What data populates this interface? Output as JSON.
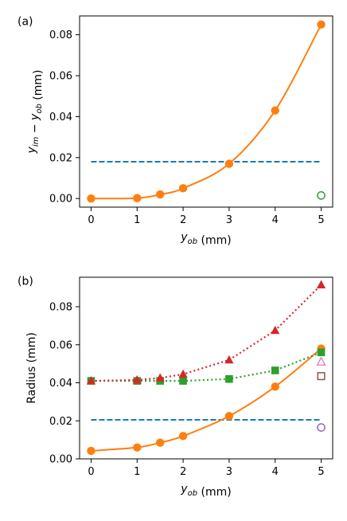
{
  "chart_data": [
    {
      "panel_label": "(a)",
      "type": "line",
      "xlabel": "y_ob (mm)",
      "ylabel": "y_im − y_ob (mm)",
      "xlim": [
        -0.25,
        5.25
      ],
      "ylim": [
        -0.0042,
        0.0892
      ],
      "xticks": [
        0,
        1,
        2,
        3,
        4,
        5
      ],
      "xtick_labels": [
        "0",
        "1",
        "2",
        "3",
        "4",
        "5"
      ],
      "yticks": [
        0.0,
        0.02,
        0.04,
        0.06,
        0.08
      ],
      "ytick_labels": [
        "0.00",
        "0.02",
        "0.04",
        "0.06",
        "0.08"
      ],
      "grid": false,
      "series": [
        {
          "style": "dashed",
          "color": "#1f77b4",
          "marker": "none",
          "x": [
            0,
            5
          ],
          "y": [
            0.018,
            0.018
          ]
        },
        {
          "style": "solid-smooth",
          "color": "#ff7f0e",
          "marker": "circle-filled",
          "x": [
            0,
            1,
            1.5,
            2,
            3,
            4,
            5
          ],
          "y": [
            0.0,
            0.0002,
            0.002,
            0.005,
            0.017,
            0.043,
            0.085
          ]
        },
        {
          "style": "none",
          "color": "#2ca02c",
          "marker": "circle-open",
          "x": [
            5
          ],
          "y": [
            0.0015
          ]
        }
      ]
    },
    {
      "panel_label": "(b)",
      "type": "line",
      "xlabel": "y_ob (mm)",
      "ylabel": "Radius (mm)",
      "xlim": [
        -0.25,
        5.25
      ],
      "ylim": [
        0.0,
        0.0955
      ],
      "xticks": [
        0,
        1,
        2,
        3,
        4,
        5
      ],
      "xtick_labels": [
        "0",
        "1",
        "2",
        "3",
        "4",
        "5"
      ],
      "yticks": [
        0.0,
        0.02,
        0.04,
        0.06,
        0.08
      ],
      "ytick_labels": [
        "0.00",
        "0.02",
        "0.04",
        "0.06",
        "0.08"
      ],
      "grid": false,
      "series": [
        {
          "style": "dashed",
          "color": "#1f77b4",
          "marker": "none",
          "x": [
            0,
            5
          ],
          "y": [
            0.0205,
            0.0205
          ]
        },
        {
          "style": "solid-smooth",
          "color": "#ff7f0e",
          "marker": "circle-filled",
          "x": [
            0,
            1,
            1.5,
            2,
            3,
            4,
            5
          ],
          "y": [
            0.0042,
            0.006,
            0.0085,
            0.012,
            0.0225,
            0.038,
            0.058
          ]
        },
        {
          "style": "dotted",
          "color": "#2ca02c",
          "marker": "square-filled",
          "x": [
            0,
            1,
            1.5,
            2,
            3,
            4,
            5
          ],
          "y": [
            0.041,
            0.041,
            0.041,
            0.041,
            0.042,
            0.0465,
            0.056
          ]
        },
        {
          "style": "dotted",
          "color": "#d62728",
          "marker": "triangle-filled",
          "x": [
            0,
            1,
            1.5,
            2,
            3,
            4,
            5
          ],
          "y": [
            0.041,
            0.0415,
            0.0425,
            0.0445,
            0.052,
            0.0675,
            0.0915
          ]
        },
        {
          "style": "none",
          "color": "#e377c2",
          "marker": "triangle-open",
          "x": [
            5
          ],
          "y": [
            0.051
          ]
        },
        {
          "style": "none",
          "color": "#8c564b",
          "marker": "square-open",
          "x": [
            5
          ],
          "y": [
            0.0435
          ]
        },
        {
          "style": "none",
          "color": "#9467bd",
          "marker": "circle-open",
          "x": [
            5
          ],
          "y": [
            0.0165
          ]
        }
      ]
    }
  ]
}
